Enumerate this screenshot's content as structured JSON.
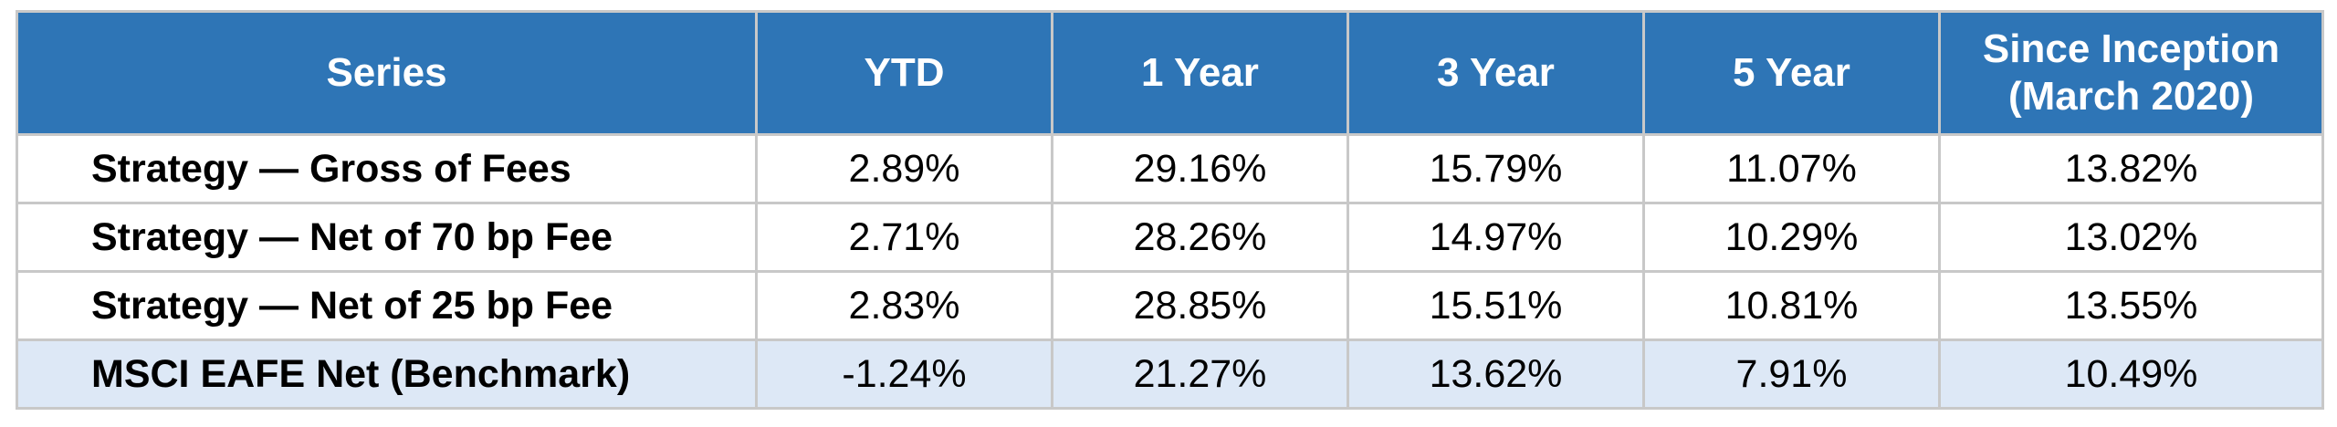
{
  "table": {
    "headers": [
      "Series",
      "YTD",
      "1 Year",
      "3 Year",
      "5 Year"
    ],
    "header_last_line1": "Since Inception",
    "header_last_line2": "(March 2020)",
    "rows": [
      {
        "series": "Strategy — Gross of Fees",
        "values": [
          "2.89%",
          "29.16%",
          "15.79%",
          "11.07%",
          "13.82%"
        ]
      },
      {
        "series": "Strategy — Net of 70 bp Fee",
        "values": [
          "2.71%",
          "28.26%",
          "14.97%",
          "10.29%",
          "13.02%"
        ]
      },
      {
        "series": "Strategy — Net of 25 bp Fee",
        "values": [
          "2.83%",
          "28.85%",
          "15.51%",
          "10.81%",
          "13.55%"
        ]
      },
      {
        "series": "MSCI EAFE Net (Benchmark)",
        "values": [
          "-1.24%",
          "21.27%",
          "13.62%",
          "7.91%",
          "10.49%"
        ]
      }
    ],
    "colors": {
      "header_bg": "#2e75b6",
      "header_text": "#ffffff",
      "benchmark_row_bg": "#dde8f6",
      "border": "#c8c8c8"
    }
  }
}
